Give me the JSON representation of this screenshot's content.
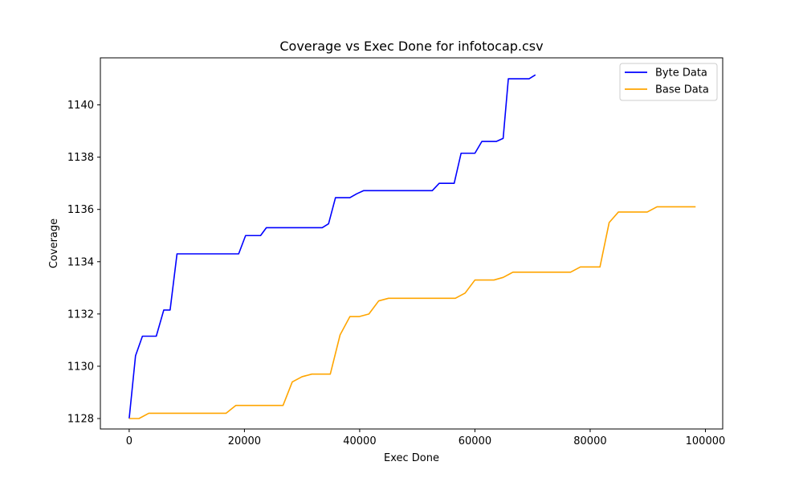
{
  "chart_data": {
    "type": "line",
    "title": "Coverage vs Exec Done for infotocap.csv",
    "xlabel": "Exec Done",
    "ylabel": "Coverage",
    "xlim": [
      -5000,
      103000
    ],
    "ylim": [
      1127.6,
      1141.8
    ],
    "xticks": [
      0,
      20000,
      40000,
      60000,
      80000,
      100000
    ],
    "yticks": [
      1128,
      1130,
      1132,
      1134,
      1136,
      1138,
      1140
    ],
    "grid": false,
    "legend_position": "top-right",
    "series": [
      {
        "name": "Byte Data",
        "color": "#0000ff",
        "x": [
          0,
          1100,
          2300,
          3200,
          4700,
          6000,
          7100,
          8300,
          9500,
          12000,
          15000,
          17500,
          19000,
          20200,
          21500,
          22800,
          23800,
          25000,
          28000,
          31000,
          33500,
          34600,
          35800,
          37000,
          38300,
          39500,
          40700,
          42000,
          45000,
          48000,
          50000,
          52600,
          53800,
          55000,
          56400,
          57600,
          58800,
          60000,
          61200,
          62500,
          63700,
          64900,
          65800,
          67000,
          68200,
          69400,
          70500
        ],
        "y": [
          1128.0,
          1130.4,
          1131.15,
          1131.15,
          1131.15,
          1132.15,
          1132.15,
          1134.3,
          1134.3,
          1134.3,
          1134.3,
          1134.3,
          1134.3,
          1135.0,
          1135.0,
          1135.0,
          1135.3,
          1135.3,
          1135.3,
          1135.3,
          1135.3,
          1135.45,
          1136.45,
          1136.45,
          1136.45,
          1136.6,
          1136.72,
          1136.72,
          1136.72,
          1136.72,
          1136.72,
          1136.72,
          1137.0,
          1137.0,
          1137.0,
          1138.15,
          1138.15,
          1138.15,
          1138.6,
          1138.6,
          1138.6,
          1138.72,
          1141.0,
          1141.0,
          1141.0,
          1141.0,
          1141.15
        ]
      },
      {
        "name": "Base Data",
        "color": "#ffa500",
        "x": [
          0,
          1700,
          3400,
          5100,
          10000,
          15000,
          16800,
          18500,
          20200,
          25000,
          26700,
          28300,
          30000,
          31700,
          33400,
          34900,
          36600,
          38300,
          39900,
          41600,
          43300,
          45000,
          50000,
          55000,
          56600,
          58300,
          60000,
          61700,
          63300,
          64900,
          66600,
          70000,
          75000,
          76600,
          78300,
          80000,
          81700,
          83300,
          84900,
          86600,
          88300,
          89900,
          91600,
          95000,
          98300
        ],
        "y": [
          1128.0,
          1128.0,
          1128.2,
          1128.2,
          1128.2,
          1128.2,
          1128.2,
          1128.5,
          1128.5,
          1128.5,
          1128.5,
          1129.4,
          1129.6,
          1129.7,
          1129.7,
          1129.7,
          1131.2,
          1131.9,
          1131.9,
          1132.0,
          1132.5,
          1132.6,
          1132.6,
          1132.6,
          1132.6,
          1132.8,
          1133.3,
          1133.3,
          1133.3,
          1133.4,
          1133.6,
          1133.6,
          1133.6,
          1133.6,
          1133.8,
          1133.8,
          1133.8,
          1135.5,
          1135.9,
          1135.9,
          1135.9,
          1135.9,
          1136.1,
          1136.1,
          1136.1
        ]
      }
    ]
  }
}
